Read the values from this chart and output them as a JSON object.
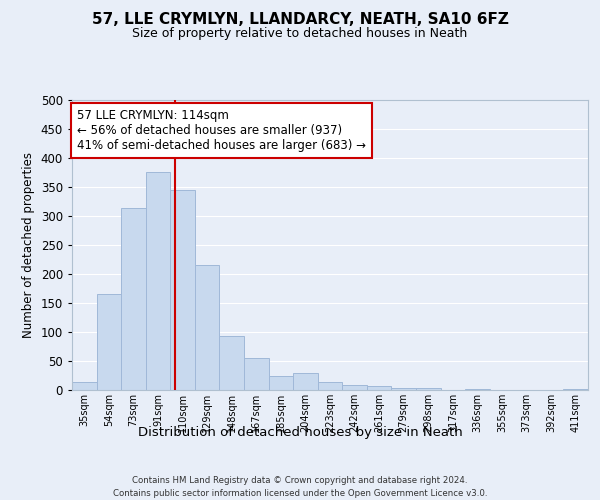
{
  "title": "57, LLE CRYMLYN, LLANDARCY, NEATH, SA10 6FZ",
  "subtitle": "Size of property relative to detached houses in Neath",
  "xlabel": "Distribution of detached houses by size in Neath",
  "ylabel": "Number of detached properties",
  "bar_labels": [
    "35sqm",
    "54sqm",
    "73sqm",
    "91sqm",
    "110sqm",
    "129sqm",
    "148sqm",
    "167sqm",
    "185sqm",
    "204sqm",
    "223sqm",
    "242sqm",
    "261sqm",
    "279sqm",
    "298sqm",
    "317sqm",
    "336sqm",
    "355sqm",
    "373sqm",
    "392sqm",
    "411sqm"
  ],
  "bar_values": [
    13,
    165,
    313,
    376,
    345,
    215,
    93,
    55,
    24,
    29,
    14,
    9,
    7,
    4,
    3,
    0,
    1,
    0,
    0,
    0,
    2
  ],
  "bar_color": "#c8d9ee",
  "bar_edgecolor": "#a0b8d8",
  "ylim": [
    0,
    500
  ],
  "yticks": [
    0,
    50,
    100,
    150,
    200,
    250,
    300,
    350,
    400,
    450,
    500
  ],
  "vline_color": "#cc0000",
  "annotation_text": "57 LLE CRYMLYN: 114sqm\n← 56% of detached houses are smaller (937)\n41% of semi-detached houses are larger (683) →",
  "annotation_box_edgecolor": "#cc0000",
  "annotation_box_facecolor": "#ffffff",
  "background_color": "#e8eef8",
  "grid_color": "#ffffff",
  "footer_text": "Contains HM Land Registry data © Crown copyright and database right 2024.\nContains public sector information licensed under the Open Government Licence v3.0.",
  "vline_x": 4.21
}
